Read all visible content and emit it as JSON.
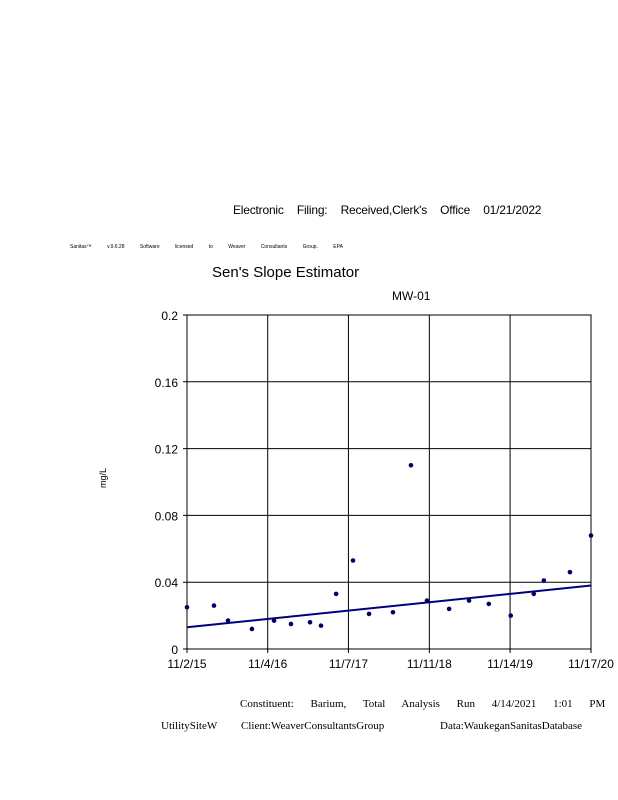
{
  "header": {
    "filing_text": "Electronic Filing: Received,Clerk's Office 01/21/2022",
    "license_text": "Sanitas™ v.9.6.28 Software licensed to Weaver Consultants Group. EPA"
  },
  "footer": {
    "constituent": "Constituent: Barium, Total Analysis Run 4/14/2021 1:01 PM",
    "site": "UtilitySiteW",
    "client": "Client:WeaverConsultantsGroup",
    "database": "Data:WaukeganSanitasDatabase"
  },
  "chart_data": {
    "type": "scatter",
    "title": "Sen's Slope Estimator",
    "subtitle": "MW-01",
    "ylabel": "mg/L",
    "xlabel": "",
    "ylim": [
      0,
      0.2
    ],
    "yticks": [
      "0",
      "0.04",
      "0.08",
      "0.12",
      "0.16",
      "0.2"
    ],
    "xlim": [
      "2015-11-02",
      "2020-11-17"
    ],
    "xticks": [
      {
        "date": "2015-11-02",
        "label": "11/2/15"
      },
      {
        "date": "2016-11-04",
        "label": "11/4/16"
      },
      {
        "date": "2017-11-07",
        "label": "11/7/17"
      },
      {
        "date": "2018-11-11",
        "label": "11/11/18"
      },
      {
        "date": "2019-11-14",
        "label": "11/14/19"
      },
      {
        "date": "2020-11-17",
        "label": "11/17/20"
      }
    ],
    "grid": true,
    "point_color": "#000066",
    "trend_color": "#000080",
    "points": [
      {
        "x": "2015-11-02",
        "y": 0.025
      },
      {
        "x": "2016-03-04",
        "y": 0.026
      },
      {
        "x": "2016-05-07",
        "y": 0.017
      },
      {
        "x": "2016-08-24",
        "y": 0.012
      },
      {
        "x": "2016-12-03",
        "y": 0.017
      },
      {
        "x": "2017-02-18",
        "y": 0.015
      },
      {
        "x": "2017-05-16",
        "y": 0.016
      },
      {
        "x": "2017-07-05",
        "y": 0.014
      },
      {
        "x": "2017-09-12",
        "y": 0.033
      },
      {
        "x": "2017-11-28",
        "y": 0.053
      },
      {
        "x": "2018-02-09",
        "y": 0.021
      },
      {
        "x": "2018-05-29",
        "y": 0.022
      },
      {
        "x": "2018-08-19",
        "y": 0.11
      },
      {
        "x": "2018-10-31",
        "y": 0.029
      },
      {
        "x": "2019-02-09",
        "y": 0.024
      },
      {
        "x": "2019-05-11",
        "y": 0.029
      },
      {
        "x": "2019-08-09",
        "y": 0.027
      },
      {
        "x": "2019-11-17",
        "y": 0.02
      },
      {
        "x": "2020-03-01",
        "y": 0.033
      },
      {
        "x": "2020-04-16",
        "y": 0.041
      },
      {
        "x": "2020-08-13",
        "y": 0.046
      },
      {
        "x": "2020-11-17",
        "y": 0.068
      }
    ],
    "trend_line": [
      {
        "x": "2015-11-02",
        "y": 0.013
      },
      {
        "x": "2020-11-17",
        "y": 0.038
      }
    ]
  }
}
